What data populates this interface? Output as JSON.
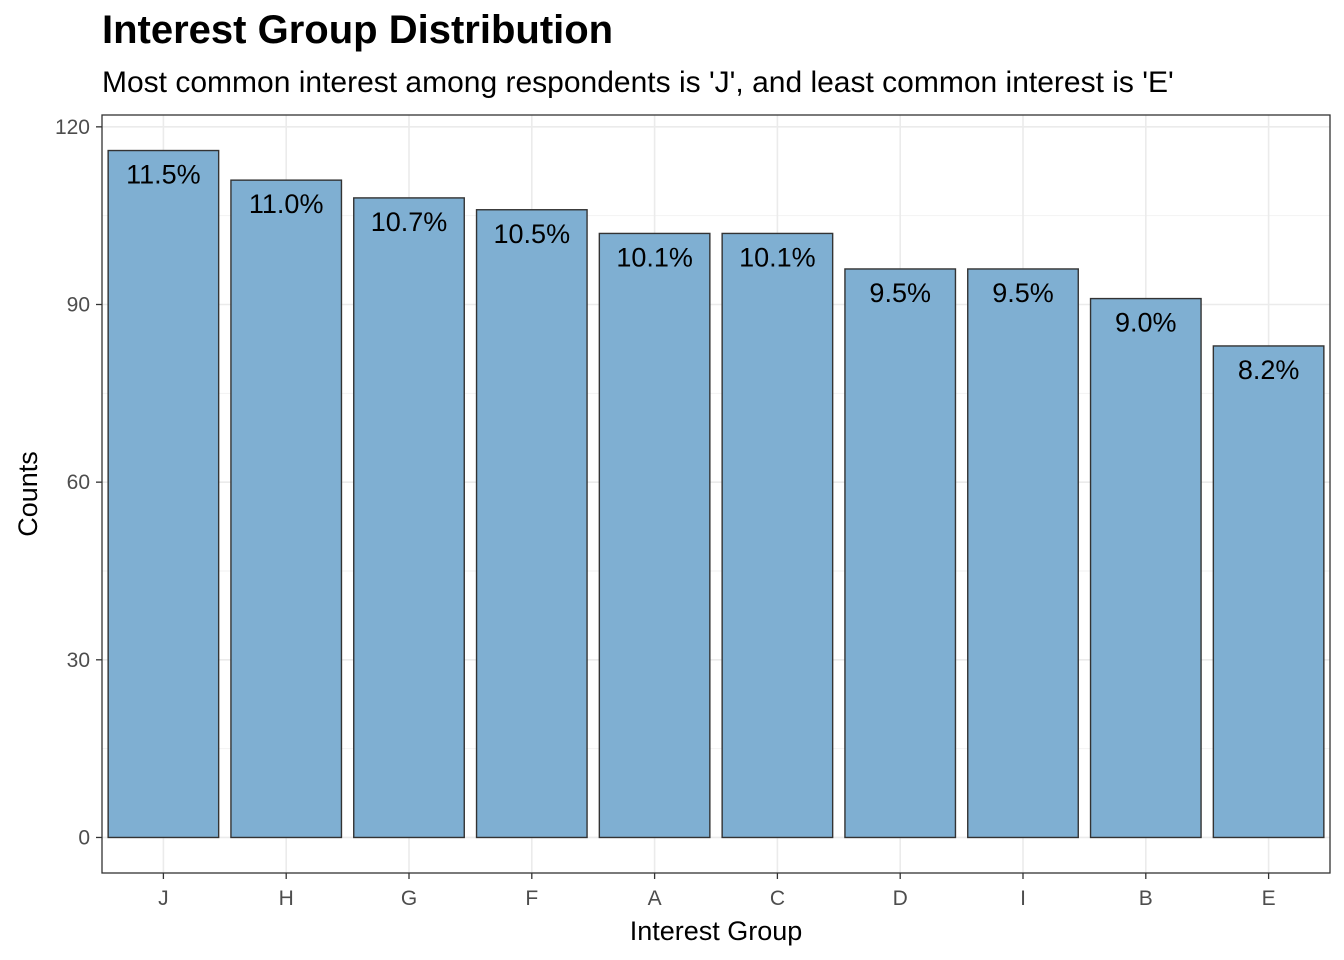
{
  "chart_data": {
    "type": "bar",
    "title": "Interest Group Distribution",
    "subtitle": "Most common interest among respondents is 'J', and least common interest is 'E'",
    "xlabel": "Interest Group",
    "ylabel": "Counts",
    "categories": [
      "J",
      "H",
      "G",
      "F",
      "A",
      "C",
      "D",
      "I",
      "B",
      "E"
    ],
    "values": [
      116,
      111,
      108,
      106,
      102,
      102,
      96,
      96,
      91,
      83
    ],
    "data_labels": [
      "11.5%",
      "11.0%",
      "10.7%",
      "10.5%",
      "10.1%",
      "10.1%",
      "9.5%",
      "9.5%",
      "9.0%",
      "8.2%"
    ],
    "ylim": [
      -6,
      122
    ],
    "yticks": [
      0,
      30,
      60,
      90,
      120
    ],
    "grid": true,
    "bar_color": "#7fafd2",
    "bar_outline": "#333333"
  }
}
